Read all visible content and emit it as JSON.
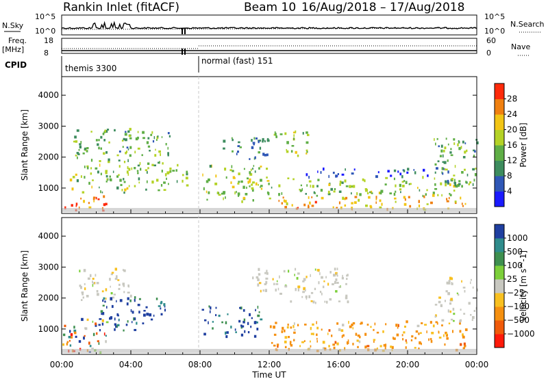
{
  "header": {
    "station": "Rankin Inlet (fitACF)",
    "beam": "Beam 10",
    "date_range": "16/Aug/2018 – 17/Aug/2018"
  },
  "params_panel": {
    "nsky_label": "N.Sky",
    "nsearch_label": "N.Search",
    "freq_label": "Freq.",
    "freq_unit": "[MHz]",
    "nave_label": "Nave",
    "cpid_label": "CPID",
    "nsky_ticks": [
      "10^5",
      "10^0"
    ],
    "nsearch_ticks": [
      "10^5",
      "10^0"
    ],
    "freq_ticks": [
      "18",
      "8"
    ],
    "nave_ticks": [
      "60",
      "0"
    ],
    "cpid_modes": [
      {
        "label": "themis 3300",
        "start_hour": 0
      },
      {
        "label": "normal (fast) 151",
        "start_hour": 8
      }
    ]
  },
  "chart_data": [
    {
      "type": "heatmap",
      "panel": "power",
      "xlabel": "",
      "ylabel": "Slant Range [km]",
      "x_ticks": [
        "00:00",
        "04:00",
        "08:00",
        "12:00",
        "16:00",
        "20:00",
        "00:00"
      ],
      "xlim_hours": [
        0,
        24
      ],
      "y_ticks": [
        1000,
        2000,
        3000,
        4000
      ],
      "ylim": [
        180,
        4600
      ],
      "colorbar": {
        "label": "Power [dB]",
        "ticks": [
          "4",
          "8",
          "12",
          "16",
          "20",
          "24",
          "28"
        ],
        "range": [
          0,
          30
        ],
        "colors": [
          "#1a1aff",
          "#2f57b6",
          "#3d8c5e",
          "#5fae46",
          "#b4d226",
          "#f2c515",
          "#f08010",
          "#ff2a0a"
        ]
      },
      "echo_regions": [
        {
          "t0": 0.0,
          "t1": 2.6,
          "r0": 200,
          "r1": 700,
          "v": 27
        },
        {
          "t0": 0.3,
          "t1": 4.2,
          "r0": 800,
          "r1": 1700,
          "v": 15
        },
        {
          "t0": 0.6,
          "t1": 4.0,
          "r0": 1800,
          "r1": 2900,
          "v": 12
        },
        {
          "t0": 4.0,
          "t1": 7.2,
          "r0": 900,
          "r1": 1800,
          "v": 14
        },
        {
          "t0": 3.5,
          "t1": 6.5,
          "r0": 2000,
          "r1": 2800,
          "v": 12
        },
        {
          "t0": 8.0,
          "t1": 12.0,
          "r0": 500,
          "r1": 1700,
          "v": 16
        },
        {
          "t0": 9.0,
          "t1": 12.0,
          "r0": 1900,
          "r1": 2600,
          "v": 9
        },
        {
          "t0": 12.0,
          "t1": 14.2,
          "r0": 2000,
          "r1": 2800,
          "v": 15
        },
        {
          "t0": 12.5,
          "t1": 23.6,
          "r0": 250,
          "r1": 700,
          "v": 22
        },
        {
          "t0": 12.0,
          "t1": 23.0,
          "r0": 700,
          "r1": 1300,
          "v": 15
        },
        {
          "t0": 14.0,
          "t1": 22.0,
          "r0": 1300,
          "r1": 1600,
          "v": 6
        },
        {
          "t0": 21.5,
          "t1": 24.0,
          "r0": 1000,
          "r1": 2600,
          "v": 12
        }
      ]
    },
    {
      "type": "heatmap",
      "panel": "velocity",
      "xlabel": "Time UT",
      "ylabel": "Slant Range [km]",
      "x_ticks": [
        "00:00",
        "04:00",
        "08:00",
        "12:00",
        "16:00",
        "20:00",
        "00:00"
      ],
      "xlim_hours": [
        0,
        24
      ],
      "y_ticks": [
        1000,
        2000,
        3000,
        4000
      ],
      "ylim": [
        180,
        4600
      ],
      "colorbar": {
        "label": "Velocity [m s^-1]",
        "ticks": [
          "1000",
          "500",
          "100",
          "25",
          "−25",
          "−100",
          "−500",
          "−1000"
        ],
        "colors": [
          "#1f3fa0",
          "#2f8c8c",
          "#3e8f4f",
          "#7ccf3a",
          "#c8c8c0",
          "#f8c020",
          "#f59010",
          "#f05a0a",
          "#ff1a0a"
        ]
      },
      "echo_regions": [
        {
          "t0": 0.0,
          "t1": 2.6,
          "r0": 200,
          "r1": 1300,
          "v": "mixed"
        },
        {
          "t0": 1.0,
          "t1": 4.0,
          "r0": 1900,
          "r1": 2900,
          "v": "~0"
        },
        {
          "t0": 2.0,
          "t1": 6.0,
          "r0": 900,
          "r1": 2000,
          "v": "+500"
        },
        {
          "t0": 8.0,
          "t1": 11.5,
          "r0": 700,
          "r1": 1700,
          "v": "+500"
        },
        {
          "t0": 12.0,
          "t1": 23.5,
          "r0": 250,
          "r1": 1200,
          "v": "-100"
        },
        {
          "t0": 11.0,
          "t1": 16.5,
          "r0": 1800,
          "r1": 2900,
          "v": "~0"
        },
        {
          "t0": 21.5,
          "t1": 24.0,
          "r0": 1200,
          "r1": 2600,
          "v": "~0"
        }
      ]
    }
  ]
}
